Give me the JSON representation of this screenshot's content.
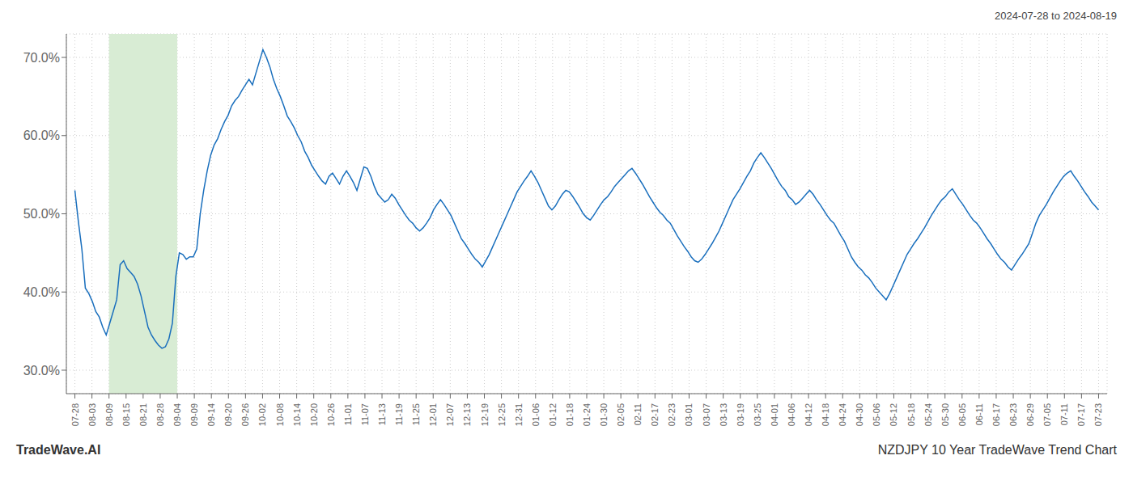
{
  "chart_data": {
    "type": "line",
    "title": "NZDJPY 10 Year TradeWave Trend Chart",
    "subtitle": "2024-07-28 to 2024-08-19",
    "annotations": [
      "TradeWave.AI"
    ],
    "color": "#1a6fbd",
    "grid": true,
    "x": [
      0,
      1,
      2,
      3,
      4,
      5,
      6,
      7,
      8,
      9,
      10,
      11,
      12,
      13,
      14,
      15,
      16,
      17,
      18,
      19,
      20,
      21,
      22,
      23,
      24,
      25,
      26,
      27,
      28,
      29,
      30,
      31,
      32,
      33,
      34,
      35,
      36,
      37,
      38,
      39,
      40,
      41,
      42,
      43,
      44,
      45,
      46,
      47,
      48,
      49,
      50,
      51,
      52,
      53,
      54,
      55,
      56,
      57,
      58,
      59,
      60,
      61,
      62,
      63,
      64,
      65,
      66,
      67,
      68,
      69,
      70,
      71,
      72,
      73,
      74,
      75,
      76,
      77,
      78,
      79,
      80,
      81,
      82,
      83,
      84,
      85,
      86,
      87,
      88,
      89,
      90,
      91,
      92,
      93,
      94,
      95,
      96,
      97,
      98,
      99,
      100,
      101,
      102,
      103,
      104,
      105,
      106,
      107,
      108,
      109,
      110,
      111,
      112,
      113,
      114,
      115,
      116,
      117,
      118,
      119,
      120,
      121,
      122,
      123,
      124,
      125,
      126,
      127,
      128,
      129,
      130,
      131,
      132,
      133,
      134,
      135,
      136,
      137,
      138,
      139,
      140,
      141,
      142,
      143,
      144,
      145,
      146,
      147,
      148,
      149,
      150,
      151,
      152,
      153,
      154,
      155,
      156,
      157,
      158,
      159,
      160,
      161,
      162,
      163,
      164,
      165,
      166,
      167,
      168,
      169,
      170,
      171,
      172,
      173,
      174,
      175,
      176,
      177,
      178,
      179,
      180,
      181,
      182,
      183,
      184,
      185,
      186,
      187,
      188,
      189,
      190,
      191,
      192,
      193,
      194,
      195,
      196,
      197,
      198,
      199,
      200,
      201,
      202,
      203,
      204,
      205,
      206,
      207,
      208,
      209,
      210,
      211,
      212,
      213,
      214,
      215,
      216,
      217,
      218,
      219,
      220,
      221,
      222,
      223,
      224,
      225,
      226,
      227,
      228,
      229,
      230,
      231,
      232,
      233,
      234,
      235,
      236,
      237,
      238,
      239,
      240,
      241,
      242,
      243,
      244,
      245,
      246,
      247,
      248,
      249,
      250,
      251,
      252,
      253,
      254,
      255,
      256,
      257,
      258,
      259,
      260,
      261,
      262,
      263,
      264,
      265,
      266,
      267,
      268,
      269,
      270,
      271,
      272,
      273,
      274,
      275,
      276,
      277,
      278,
      279,
      280,
      281,
      282,
      283,
      284,
      285,
      286,
      287,
      288,
      289,
      290,
      291,
      292,
      293,
      294
    ],
    "values": [
      0.53,
      0.49,
      0.455,
      0.405,
      0.398,
      0.388,
      0.375,
      0.368,
      0.355,
      0.345,
      0.36,
      0.375,
      0.39,
      0.435,
      0.44,
      0.43,
      0.425,
      0.42,
      0.41,
      0.395,
      0.375,
      0.355,
      0.345,
      0.338,
      0.332,
      0.328,
      0.33,
      0.34,
      0.36,
      0.42,
      0.45,
      0.448,
      0.442,
      0.445,
      0.445,
      0.455,
      0.5,
      0.53,
      0.555,
      0.575,
      0.588,
      0.596,
      0.608,
      0.618,
      0.626,
      0.638,
      0.645,
      0.65,
      0.658,
      0.665,
      0.672,
      0.665,
      0.68,
      0.695,
      0.71,
      0.7,
      0.688,
      0.672,
      0.66,
      0.65,
      0.638,
      0.625,
      0.618,
      0.61,
      0.6,
      0.592,
      0.58,
      0.572,
      0.562,
      0.555,
      0.548,
      0.542,
      0.538,
      0.548,
      0.552,
      0.545,
      0.538,
      0.548,
      0.555,
      0.548,
      0.54,
      0.53,
      0.545,
      0.56,
      0.558,
      0.548,
      0.535,
      0.525,
      0.52,
      0.515,
      0.518,
      0.525,
      0.52,
      0.512,
      0.505,
      0.498,
      0.492,
      0.488,
      0.482,
      0.478,
      0.482,
      0.488,
      0.495,
      0.505,
      0.512,
      0.518,
      0.512,
      0.505,
      0.498,
      0.488,
      0.478,
      0.468,
      0.462,
      0.455,
      0.448,
      0.442,
      0.438,
      0.432,
      0.44,
      0.448,
      0.458,
      0.468,
      0.478,
      0.488,
      0.498,
      0.508,
      0.518,
      0.528,
      0.535,
      0.542,
      0.548,
      0.555,
      0.548,
      0.54,
      0.53,
      0.52,
      0.51,
      0.505,
      0.51,
      0.518,
      0.525,
      0.53,
      0.528,
      0.522,
      0.515,
      0.508,
      0.5,
      0.495,
      0.492,
      0.498,
      0.505,
      0.512,
      0.518,
      0.522,
      0.528,
      0.535,
      0.54,
      0.545,
      0.55,
      0.555,
      0.558,
      0.552,
      0.545,
      0.538,
      0.53,
      0.522,
      0.515,
      0.508,
      0.502,
      0.498,
      0.492,
      0.488,
      0.48,
      0.472,
      0.465,
      0.458,
      0.452,
      0.445,
      0.44,
      0.438,
      0.442,
      0.448,
      0.455,
      0.462,
      0.47,
      0.478,
      0.488,
      0.498,
      0.508,
      0.518,
      0.525,
      0.532,
      0.54,
      0.548,
      0.555,
      0.565,
      0.572,
      0.578,
      0.572,
      0.565,
      0.558,
      0.55,
      0.542,
      0.535,
      0.53,
      0.522,
      0.518,
      0.512,
      0.515,
      0.52,
      0.525,
      0.53,
      0.525,
      0.518,
      0.512,
      0.505,
      0.498,
      0.492,
      0.488,
      0.48,
      0.472,
      0.465,
      0.455,
      0.445,
      0.438,
      0.432,
      0.428,
      0.422,
      0.418,
      0.412,
      0.405,
      0.4,
      0.395,
      0.39,
      0.398,
      0.408,
      0.418,
      0.428,
      0.438,
      0.448,
      0.455,
      0.462,
      0.468,
      0.475,
      0.482,
      0.49,
      0.498,
      0.505,
      0.512,
      0.518,
      0.522,
      0.528,
      0.532,
      0.525,
      0.518,
      0.512,
      0.505,
      0.498,
      0.492,
      0.488,
      0.482,
      0.475,
      0.468,
      0.462,
      0.455,
      0.448,
      0.442,
      0.438,
      0.432,
      0.428,
      0.435,
      0.442,
      0.448,
      0.455,
      0.462,
      0.475,
      0.488,
      0.498,
      0.505,
      0.512,
      0.52,
      0.528,
      0.535,
      0.542,
      0.548,
      0.552,
      0.555,
      0.548,
      0.542,
      0.535,
      0.528,
      0.522,
      0.515,
      0.51,
      0.505
    ],
    "xlim": [
      -2.45,
      296.45
    ],
    "xticks": [
      {
        "value": 0,
        "label": "07-28"
      },
      {
        "value": 4.9,
        "label": "08-03"
      },
      {
        "value": 9.8,
        "label": "08-09"
      },
      {
        "value": 14.7,
        "label": "08-15"
      },
      {
        "value": 19.6,
        "label": "08-21"
      },
      {
        "value": 24.5,
        "label": "08-28"
      },
      {
        "value": 29.4,
        "label": "09-04"
      },
      {
        "value": 34.3,
        "label": "09-09"
      },
      {
        "value": 39.2,
        "label": "09-14"
      },
      {
        "value": 44.1,
        "label": "09-20"
      },
      {
        "value": 49,
        "label": "09-26"
      },
      {
        "value": 53.9,
        "label": "10-02"
      },
      {
        "value": 58.8,
        "label": "10-08"
      },
      {
        "value": 63.7,
        "label": "10-14"
      },
      {
        "value": 68.6,
        "label": "10-20"
      },
      {
        "value": 73.5,
        "label": "10-26"
      },
      {
        "value": 78.4,
        "label": "11-01"
      },
      {
        "value": 83.3,
        "label": "11-07"
      },
      {
        "value": 88.2,
        "label": "11-13"
      },
      {
        "value": 93.1,
        "label": "11-19"
      },
      {
        "value": 98,
        "label": "11-25"
      },
      {
        "value": 102.9,
        "label": "12-01"
      },
      {
        "value": 107.8,
        "label": "12-07"
      },
      {
        "value": 112.7,
        "label": "12-13"
      },
      {
        "value": 117.6,
        "label": "12-19"
      },
      {
        "value": 122.5,
        "label": "12-25"
      },
      {
        "value": 127.4,
        "label": "12-31"
      },
      {
        "value": 132.3,
        "label": "01-06"
      },
      {
        "value": 137.2,
        "label": "01-12"
      },
      {
        "value": 142.1,
        "label": "01-18"
      },
      {
        "value": 147,
        "label": "01-24"
      },
      {
        "value": 151.9,
        "label": "01-30"
      },
      {
        "value": 156.8,
        "label": "02-05"
      },
      {
        "value": 161.7,
        "label": "02-11"
      },
      {
        "value": 166.6,
        "label": "02-17"
      },
      {
        "value": 171.5,
        "label": "02-23"
      },
      {
        "value": 176.4,
        "label": "03-01"
      },
      {
        "value": 181.3,
        "label": "03-07"
      },
      {
        "value": 186.2,
        "label": "03-13"
      },
      {
        "value": 191.1,
        "label": "03-19"
      },
      {
        "value": 196,
        "label": "03-25"
      },
      {
        "value": 200.9,
        "label": "04-01"
      },
      {
        "value": 205.8,
        "label": "04-06"
      },
      {
        "value": 210.7,
        "label": "04-12"
      },
      {
        "value": 215.6,
        "label": "04-18"
      },
      {
        "value": 220.5,
        "label": "04-24"
      },
      {
        "value": 225.4,
        "label": "04-30"
      },
      {
        "value": 230.3,
        "label": "05-06"
      },
      {
        "value": 235.2,
        "label": "05-12"
      },
      {
        "value": 240.1,
        "label": "05-18"
      },
      {
        "value": 245,
        "label": "05-24"
      },
      {
        "value": 249.9,
        "label": "05-30"
      },
      {
        "value": 254.8,
        "label": "06-05"
      },
      {
        "value": 259.7,
        "label": "06-11"
      },
      {
        "value": 264.6,
        "label": "06-17"
      },
      {
        "value": 269.5,
        "label": "06-23"
      },
      {
        "value": 274.4,
        "label": "06-29"
      },
      {
        "value": 279.3,
        "label": "07-05"
      },
      {
        "value": 284.2,
        "label": "07-11"
      },
      {
        "value": 289.1,
        "label": "07-17"
      },
      {
        "value": 294,
        "label": "07-23"
      }
    ],
    "ylim": [
      0.27,
      0.73
    ],
    "yticks": [
      {
        "value": 0.3,
        "label": "30.0%"
      },
      {
        "value": 0.4,
        "label": "40.0%"
      },
      {
        "value": 0.5,
        "label": "50.0%"
      },
      {
        "value": 0.6,
        "label": "60.0%"
      },
      {
        "value": 0.7,
        "label": "70.0%"
      }
    ],
    "shaded_region": {
      "x": [
        9.8,
        29.4
      ],
      "color": "#d8ecd4"
    }
  }
}
